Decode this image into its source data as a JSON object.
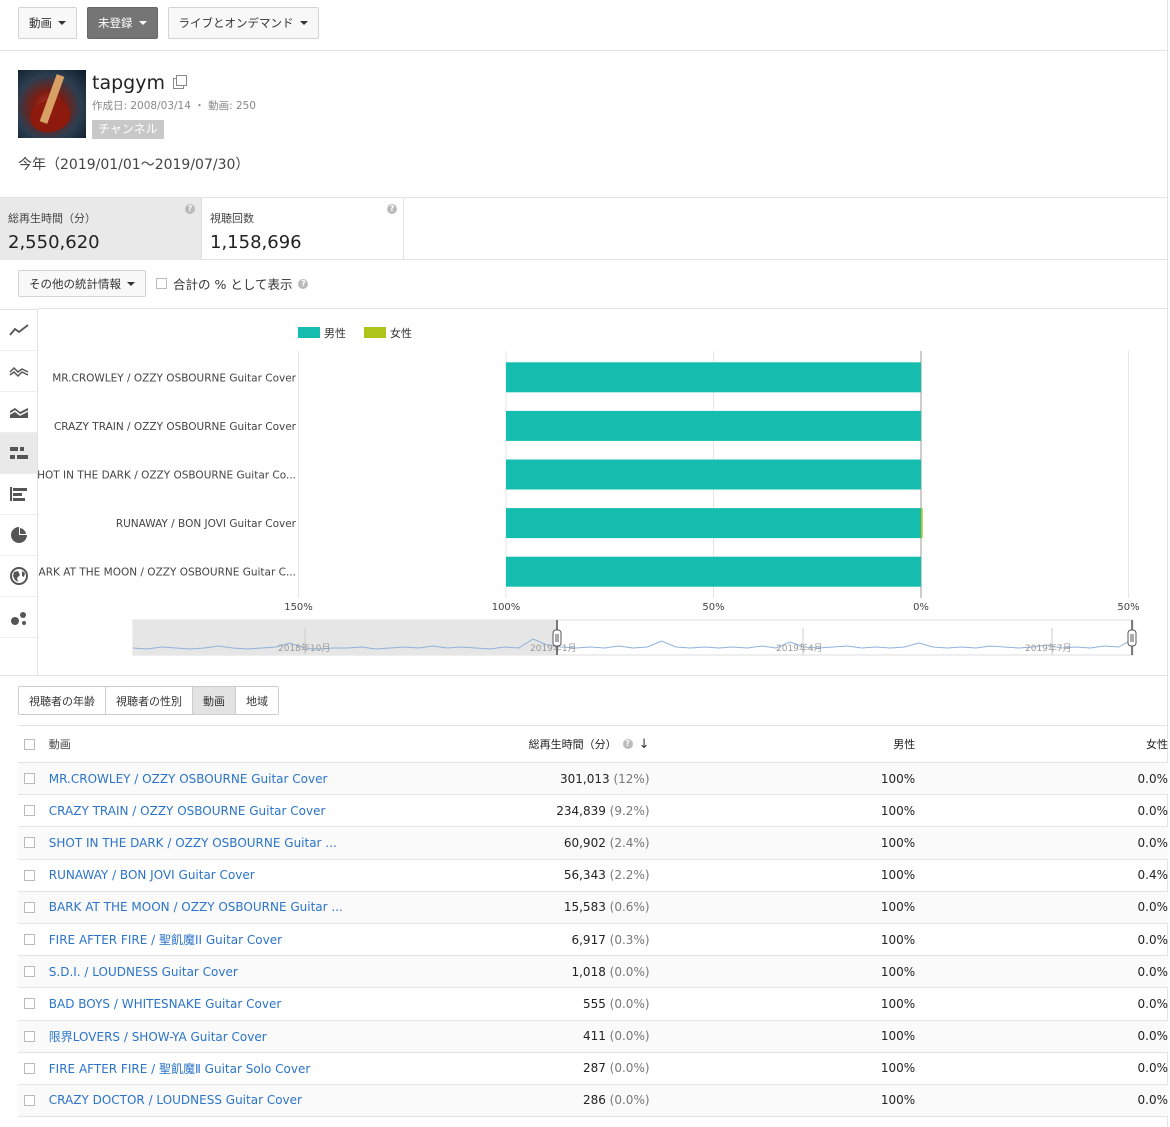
{
  "filters": [
    {
      "label": "動画",
      "dark": false
    },
    {
      "label": "未登録",
      "dark": true
    },
    {
      "label": "ライブとオンデマンド",
      "dark": false
    }
  ],
  "channel": {
    "name": "tapgym",
    "meta": "作成日: 2008/03/14 ・ 動画: 250",
    "badge": "チャンネル"
  },
  "period": "今年（2019/01/01〜2019/07/30）",
  "metrics": [
    {
      "label": "総再生時間（分）",
      "value": "2,550,620",
      "active": true
    },
    {
      "label": "視聴回数",
      "value": "1,158,696",
      "active": false
    }
  ],
  "toolbar": {
    "more_stats_label": "その他の統計情報",
    "percent_label": "合計の % として表示"
  },
  "sidebar_icons": [
    "line-chart-icon",
    "multiline-chart-icon",
    "stacked-area-icon",
    "stacked-bar-icon",
    "bar-chart-icon",
    "pie-chart-icon",
    "globe-map-icon",
    "bubble-chart-icon"
  ],
  "chart_data": {
    "type": "bar",
    "orientation": "horizontal-diverging",
    "legend": [
      {
        "name": "男性",
        "color": "#14bdad"
      },
      {
        "name": "女性",
        "color": "#aec41b"
      }
    ],
    "categories": [
      "MR.CROWLEY / OZZY OSBOURNE Guitar Cover",
      "CRAZY TRAIN / OZZY OSBOURNE Guitar Cover",
      "SHOT IN THE DARK / OZZY OSBOURNE Guitar Co...",
      "RUNAWAY / BON JOVI Guitar Cover",
      "BARK AT THE MOON / OZZY OSBOURNE Guitar C..."
    ],
    "series": [
      {
        "name": "男性",
        "values": [
          100,
          100,
          100,
          100,
          100
        ]
      },
      {
        "name": "女性",
        "values": [
          0.0,
          0.0,
          0.0,
          0.4,
          0.0
        ]
      }
    ],
    "xlim": [
      150,
      -50
    ],
    "xticks": [
      "150%",
      "100%",
      "50%",
      "0%",
      "50%"
    ],
    "timeline_labels": [
      "2018年10月",
      "2019年1月",
      "2019年4月",
      "2019年7月"
    ]
  },
  "tabs": [
    {
      "label": "視聴者の年齢",
      "active": false
    },
    {
      "label": "視聴者の性別",
      "active": false
    },
    {
      "label": "動画",
      "active": true
    },
    {
      "label": "地域",
      "active": false
    }
  ],
  "table": {
    "headers": {
      "title": "動画",
      "watch": "総再生時間（分）",
      "male": "男性",
      "female": "女性"
    },
    "rows": [
      {
        "title": "MR.CROWLEY / OZZY OSBOURNE Guitar Cover",
        "watch": "301,013",
        "pct": "(12%)",
        "male": "100%",
        "female": "0.0%"
      },
      {
        "title": "CRAZY TRAIN / OZZY OSBOURNE Guitar Cover",
        "watch": "234,839",
        "pct": "(9.2%)",
        "male": "100%",
        "female": "0.0%"
      },
      {
        "title": "SHOT IN THE DARK / OZZY OSBOURNE Guitar ...",
        "watch": "60,902",
        "pct": "(2.4%)",
        "male": "100%",
        "female": "0.0%"
      },
      {
        "title": "RUNAWAY / BON JOVI Guitar Cover",
        "watch": "56,343",
        "pct": "(2.2%)",
        "male": "100%",
        "female": "0.4%"
      },
      {
        "title": "BARK AT THE MOON / OZZY OSBOURNE Guitar ...",
        "watch": "15,583",
        "pct": "(0.6%)",
        "male": "100%",
        "female": "0.0%"
      },
      {
        "title": "FIRE AFTER FIRE / 聖飢魔II Guitar Cover",
        "watch": "6,917",
        "pct": "(0.3%)",
        "male": "100%",
        "female": "0.0%"
      },
      {
        "title": "S.D.I. / LOUDNESS Guitar Cover",
        "watch": "1,018",
        "pct": "(0.0%)",
        "male": "100%",
        "female": "0.0%"
      },
      {
        "title": "BAD BOYS / WHITESNAKE Guitar Cover",
        "watch": "555",
        "pct": "(0.0%)",
        "male": "100%",
        "female": "0.0%"
      },
      {
        "title": "限界LOVERS / SHOW-YA Guitar Cover",
        "watch": "411",
        "pct": "(0.0%)",
        "male": "100%",
        "female": "0.0%"
      },
      {
        "title": "FIRE AFTER FIRE / 聖飢魔Ⅱ Guitar Solo Cover",
        "watch": "287",
        "pct": "(0.0%)",
        "male": "100%",
        "female": "0.0%"
      },
      {
        "title": "CRAZY DOCTOR / LOUDNESS Guitar Cover",
        "watch": "286",
        "pct": "(0.0%)",
        "male": "100%",
        "female": "0.0%"
      }
    ]
  }
}
